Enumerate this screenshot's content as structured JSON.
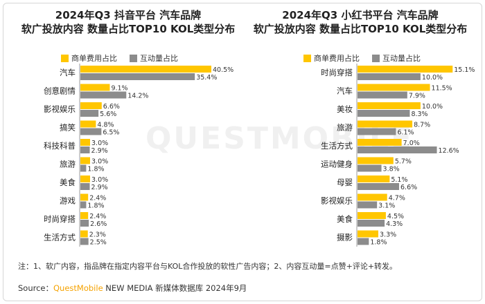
{
  "watermark": "QUESTMOBILE",
  "charts": [
    {
      "title_line1": "2024年Q3 抖音平台 汽车品牌",
      "title_line2": "软广投放内容 数量占比TOP10 KOL类型分布"
    },
    {
      "title_line1": "2024年Q3 小红书平台 汽车品牌",
      "title_line2": "软广投放内容 数量占比TOP10 KOL类型分布"
    }
  ],
  "legend": {
    "series1": "商单费用占比",
    "series2": "互动量占比"
  },
  "colors": {
    "series1": "#FFC600",
    "series2": "#8C8C8C"
  },
  "chart_data": [
    {
      "type": "bar",
      "orientation": "horizontal",
      "title": "2024年Q3 抖音平台 汽车品牌 软广投放内容 数量占比TOP10 KOL类型分布",
      "categories": [
        "汽车",
        "创意剧情",
        "影视娱乐",
        "搞笑",
        "科技科普",
        "旅游",
        "美食",
        "游戏",
        "时尚穿搭",
        "生活方式"
      ],
      "series": [
        {
          "name": "商单费用占比",
          "values": [
            40.5,
            9.1,
            6.6,
            4.8,
            3.0,
            3.0,
            3.0,
            2.4,
            2.4,
            2.3
          ],
          "labels": [
            "40.5%",
            "9.1%",
            "6.6%",
            "4.8%",
            "3.0%",
            "3.0%",
            "3.0%",
            "2.4%",
            "2.4%",
            "2.3%"
          ]
        },
        {
          "name": "互动量占比",
          "values": [
            35.4,
            14.2,
            5.6,
            6.5,
            2.9,
            1.8,
            2.9,
            1.8,
            2.6,
            2.5
          ],
          "labels": [
            "35.4%",
            "14.2%",
            "5.6%",
            "6.5%",
            "2.9%",
            "1.8%",
            "2.9%",
            "1.8%",
            "2.6%",
            "2.5%"
          ]
        }
      ],
      "xlim": [
        0,
        45
      ]
    },
    {
      "type": "bar",
      "orientation": "horizontal",
      "title": "2024年Q3 小红书平台 汽车品牌 软广投放内容 数量占比TOP10 KOL类型分布",
      "categories": [
        "时尚穿搭",
        "汽车",
        "美妆",
        "旅游",
        "生活方式",
        "运动健身",
        "母婴",
        "影视娱乐",
        "美食",
        "摄影"
      ],
      "series": [
        {
          "name": "商单费用占比",
          "values": [
            15.1,
            11.5,
            10.0,
            8.7,
            7.0,
            5.7,
            5.1,
            4.7,
            4.5,
            3.3
          ],
          "labels": [
            "15.1%",
            "11.5%",
            "10.0%",
            "8.7%",
            "7.0%",
            "5.7%",
            "5.1%",
            "4.7%",
            "4.5%",
            "3.3%"
          ]
        },
        {
          "name": "互动量占比",
          "values": [
            10.0,
            7.9,
            8.3,
            6.1,
            12.6,
            3.8,
            6.6,
            3.1,
            4.3,
            1.8
          ],
          "labels": [
            "10.0%",
            "7.9%",
            "8.3%",
            "6.1%",
            "12.6%",
            "3.8%",
            "6.6%",
            "3.1%",
            "4.3%",
            "1.8%"
          ]
        }
      ],
      "xlim": [
        0,
        16.5
      ]
    }
  ],
  "note": "注：1、软广内容，指品牌在指定内容平台与KOL合作投放的软性广告内容；2、内容互动量=点赞+评论+转发。",
  "source": {
    "prefix": "Source：",
    "brand_part1": "Quest",
    "brand_part2": "Mobile",
    "suffix": " NEW MEDIA 新媒体数据库 2024年9月"
  }
}
